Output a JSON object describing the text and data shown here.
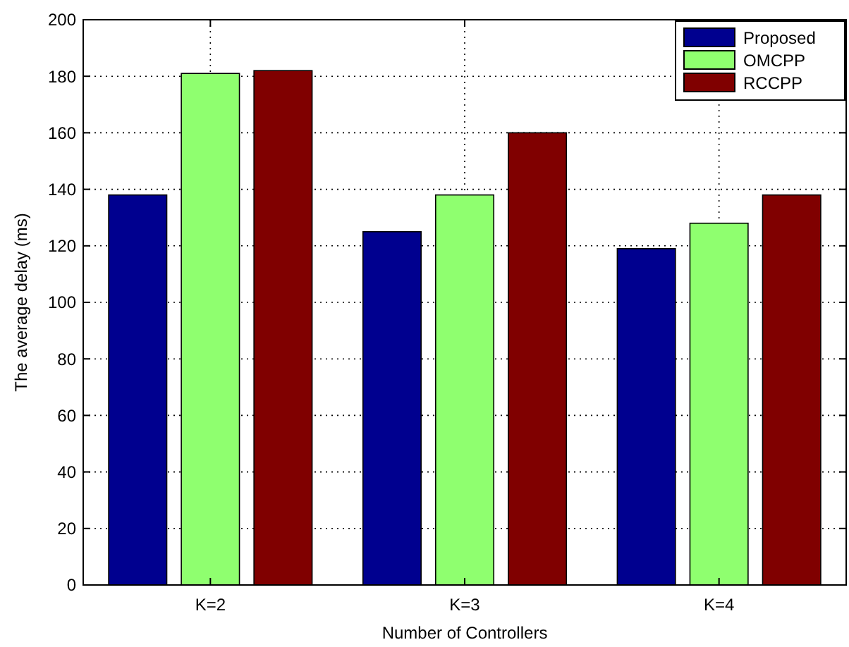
{
  "chart_data": {
    "type": "bar",
    "xlabel": "Number of Controllers",
    "ylabel": "The average delay (ms)",
    "categories": [
      "K=2",
      "K=3",
      "K=4"
    ],
    "series": [
      {
        "name": "Proposed",
        "color": "#00008f",
        "values": [
          138,
          125,
          119
        ]
      },
      {
        "name": "OMCPP",
        "color": "#8fff6f",
        "values": [
          181,
          138,
          128
        ]
      },
      {
        "name": "RCCPP",
        "color": "#800000",
        "values": [
          182,
          160,
          138
        ]
      }
    ],
    "ylim": [
      0,
      200
    ],
    "yticks": [
      0,
      20,
      40,
      60,
      80,
      100,
      120,
      140,
      160,
      180,
      200
    ],
    "grid": true,
    "legend": "top right"
  }
}
